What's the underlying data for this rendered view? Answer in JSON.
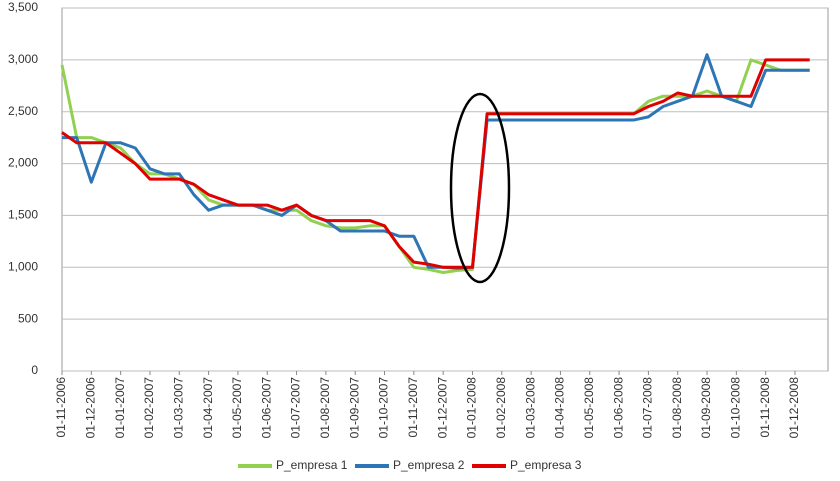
{
  "chart_data": {
    "type": "line",
    "categories": [
      "01-11-2006",
      null,
      "01-12-2006",
      null,
      "01-01-2007",
      null,
      "01-02-2007",
      null,
      "01-03-2007",
      null,
      "01-04-2007",
      null,
      "01-05-2007",
      null,
      "01-06-2007",
      null,
      "01-07-2007",
      null,
      "01-08-2007",
      null,
      "01-09-2007",
      null,
      "01-10-2007",
      null,
      "01-11-2007",
      null,
      "01-12-2007",
      null,
      "01-01-2008",
      null,
      "01-02-2008",
      null,
      "01-03-2008",
      null,
      "01-04-2008",
      null,
      "01-05-2008",
      null,
      "01-06-2008",
      null,
      "01-07-2008",
      null,
      "01-08-2008",
      null,
      "01-09-2008",
      null,
      "01-10-2008",
      null,
      "01-11-2008",
      null,
      "01-12-2008",
      null
    ],
    "series": [
      {
        "name": "P_empresa 1",
        "color": "#92d050",
        "values": [
          2950,
          2250,
          2250,
          2200,
          2150,
          2000,
          1900,
          1900,
          1850,
          1800,
          1650,
          1600,
          1600,
          1600,
          1550,
          1550,
          1550,
          1450,
          1400,
          1380,
          1380,
          1400,
          1400,
          1200,
          1000,
          980,
          950,
          970,
          980,
          2480,
          2480,
          2480,
          2480,
          2480,
          2480,
          2480,
          2480,
          2480,
          2480,
          2480,
          2600,
          2650,
          2650,
          2650,
          2700,
          2650,
          2600,
          3000,
          2950,
          2900,
          2900,
          2900
        ]
      },
      {
        "name": "P_empresa 2",
        "color": "#2e75b6",
        "values": [
          2250,
          2250,
          1820,
          2200,
          2200,
          2150,
          1950,
          1900,
          1900,
          1700,
          1550,
          1600,
          1600,
          1600,
          1550,
          1500,
          1600,
          1500,
          1450,
          1350,
          1350,
          1350,
          1350,
          1300,
          1300,
          1000,
          1000,
          990,
          1000,
          2420,
          2420,
          2420,
          2420,
          2420,
          2420,
          2420,
          2420,
          2420,
          2420,
          2420,
          2450,
          2550,
          2600,
          2650,
          3050,
          2650,
          2600,
          2550,
          2900,
          2900,
          2900,
          2900
        ]
      },
      {
        "name": "P_empresa 3",
        "color": "#e00000",
        "values": [
          2300,
          2200,
          2200,
          2200,
          2100,
          2000,
          1850,
          1850,
          1850,
          1800,
          1700,
          1650,
          1600,
          1600,
          1600,
          1550,
          1600,
          1500,
          1450,
          1450,
          1450,
          1450,
          1400,
          1200,
          1050,
          1030,
          1000,
          1000,
          1000,
          2480,
          2480,
          2480,
          2480,
          2480,
          2480,
          2480,
          2480,
          2480,
          2480,
          2480,
          2550,
          2600,
          2680,
          2650,
          2650,
          2650,
          2650,
          2650,
          3000,
          3000,
          3000,
          3000
        ]
      }
    ],
    "ylim": [
      0,
      3500
    ],
    "yticks": [
      0,
      500,
      {
        "value": 1000,
        "label": "1,000"
      },
      {
        "value": 1500,
        "label": "1,500"
      },
      {
        "value": 2000,
        "label": "2,000"
      },
      {
        "value": 2500,
        "label": "2,500"
      },
      {
        "value": 3000,
        "label": "3,000"
      },
      {
        "value": 3500,
        "label": "3,500"
      }
    ],
    "grid": true
  }
}
